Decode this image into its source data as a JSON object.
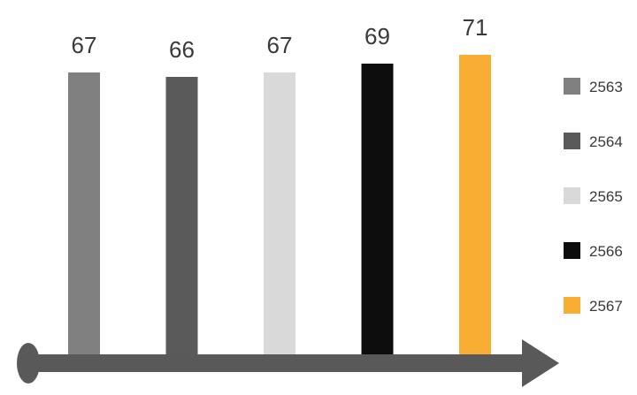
{
  "chart_data": {
    "type": "bar",
    "title": "",
    "xlabel": "",
    "ylabel": "",
    "categories": [
      "2563",
      "2564",
      "2565",
      "2566",
      "2567"
    ],
    "values": [
      67,
      66,
      67,
      69,
      71
    ],
    "colors": [
      "#808080",
      "#5a5a5a",
      "#d9d9d9",
      "#0d0d0d",
      "#f9ae33"
    ],
    "axis_color": "#595959",
    "ylim": [
      0,
      71
    ],
    "grid": false,
    "legend_position": "right",
    "data_labels": true,
    "bar_lengths_scaled": false
  }
}
